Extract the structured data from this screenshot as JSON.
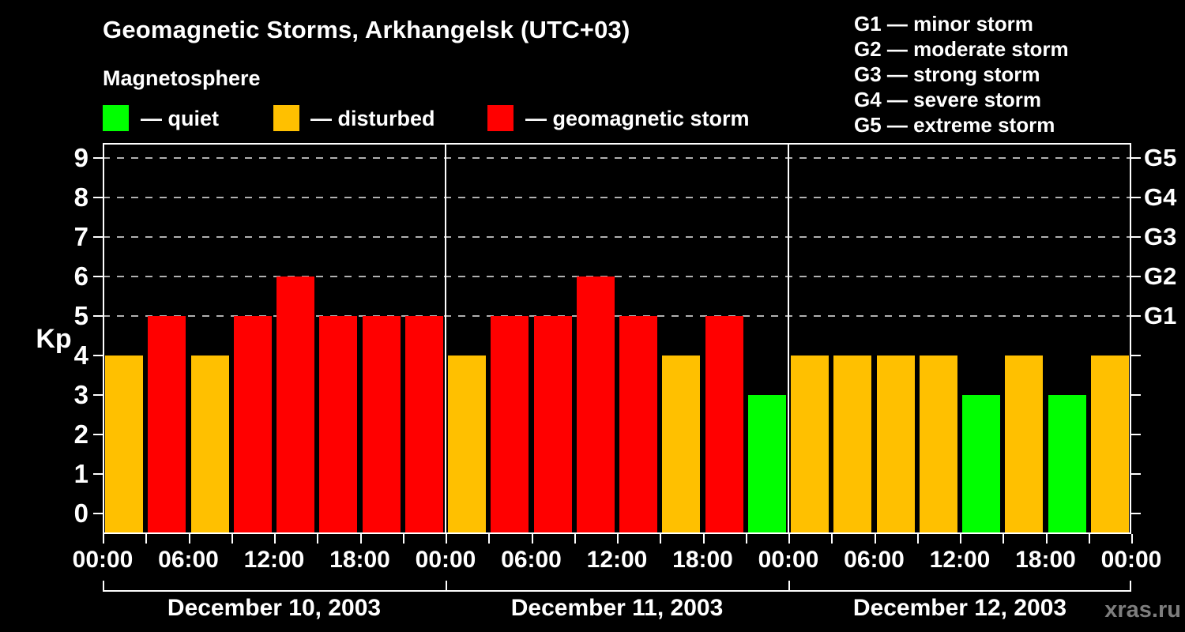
{
  "header": {
    "title": "Geomagnetic Storms, Arkhangelsk (UTC+03)",
    "subtitle": "Magnetosphere",
    "watermark": "xras.ru"
  },
  "legend": {
    "items": [
      {
        "name": "quiet",
        "label": "— quiet",
        "color": "#00ff00"
      },
      {
        "name": "disturbed",
        "label": "— disturbed",
        "color": "#ffc000"
      },
      {
        "name": "storm",
        "label": "— geomagnetic storm",
        "color": "#ff0000"
      }
    ]
  },
  "storm_scale_legend": {
    "items": [
      "G1 — minor storm",
      "G2 — moderate storm",
      "G3 — strong storm",
      "G4 — severe storm",
      "G5 — extreme storm"
    ]
  },
  "chart_data": {
    "type": "bar",
    "title": "Geomagnetic Storms, Arkhangelsk (UTC+03)",
    "ylabel": "Kp",
    "ylim": [
      0,
      9
    ],
    "yticks": [
      0,
      1,
      2,
      3,
      4,
      5,
      6,
      7,
      8,
      9
    ],
    "grid_kp": [
      5,
      6,
      7,
      8,
      9
    ],
    "grid_style": "dashed",
    "right_axis_labels": [
      {
        "kp": 5,
        "label": "G1"
      },
      {
        "kp": 6,
        "label": "G2"
      },
      {
        "kp": 7,
        "label": "G3"
      },
      {
        "kp": 8,
        "label": "G4"
      },
      {
        "kp": 9,
        "label": "G5"
      }
    ],
    "x_tick_labels": [
      "00:00",
      "06:00",
      "12:00",
      "18:00",
      "00:00",
      "06:00",
      "12:00",
      "18:00",
      "00:00",
      "06:00",
      "12:00",
      "18:00",
      "00:00"
    ],
    "hours_per_bar": 3,
    "days": [
      {
        "date": "December 10, 2003",
        "values": [
          4,
          5,
          4,
          5,
          6,
          5,
          5,
          5
        ]
      },
      {
        "date": "December 11, 2003",
        "values": [
          4,
          5,
          5,
          6,
          5,
          4,
          5,
          3
        ]
      },
      {
        "date": "December 12, 2003",
        "values": [
          4,
          4,
          4,
          4,
          3,
          4,
          3,
          4
        ]
      }
    ],
    "color_rule": {
      "quiet_kp_max": 3,
      "disturbed_kp": 4,
      "storm_kp_min": 5
    },
    "colors": {
      "quiet": "#00ff00",
      "disturbed": "#ffc000",
      "storm": "#ff0000",
      "background": "#000000",
      "text": "#ffffff",
      "grid": "#b0b0b0"
    }
  }
}
